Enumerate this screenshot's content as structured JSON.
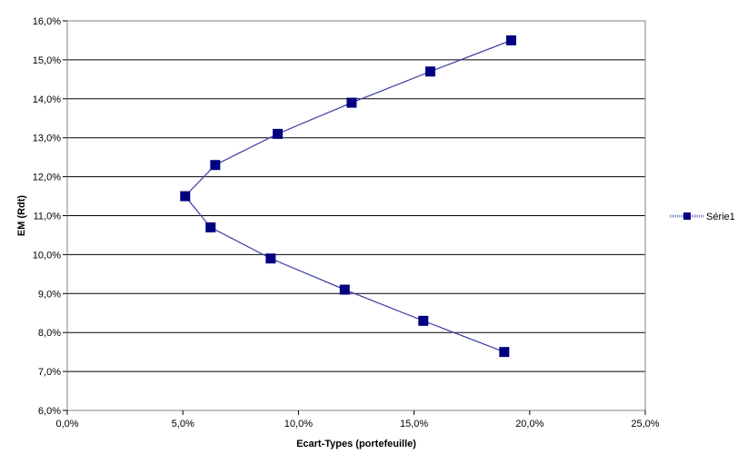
{
  "chart_data": {
    "type": "scatter",
    "title": "",
    "xlabel": "Ecart-Types (portefeuille)",
    "ylabel": "EM (Rdt)",
    "xlim": [
      0,
      25
    ],
    "ylim": [
      6,
      16
    ],
    "x_ticks": [
      "0,0%",
      "5,0%",
      "10,0%",
      "15,0%",
      "20,0%",
      "25,0%"
    ],
    "y_ticks": [
      "6,0%",
      "7,0%",
      "8,0%",
      "9,0%",
      "10,0%",
      "11,0%",
      "12,0%",
      "13,0%",
      "14,0%",
      "15,0%",
      "16,0%"
    ],
    "grid": "horizontal",
    "legend": "right",
    "series": [
      {
        "name": "Série1",
        "color": "#000080",
        "points": [
          {
            "x": 19.2,
            "y": 15.5
          },
          {
            "x": 15.7,
            "y": 14.7
          },
          {
            "x": 12.3,
            "y": 13.9
          },
          {
            "x": 9.1,
            "y": 13.1
          },
          {
            "x": 6.4,
            "y": 12.3
          },
          {
            "x": 5.1,
            "y": 11.5
          },
          {
            "x": 6.2,
            "y": 10.7
          },
          {
            "x": 8.8,
            "y": 9.9
          },
          {
            "x": 12.0,
            "y": 9.1
          },
          {
            "x": 15.4,
            "y": 8.3
          },
          {
            "x": 18.9,
            "y": 7.5
          }
        ]
      }
    ]
  }
}
